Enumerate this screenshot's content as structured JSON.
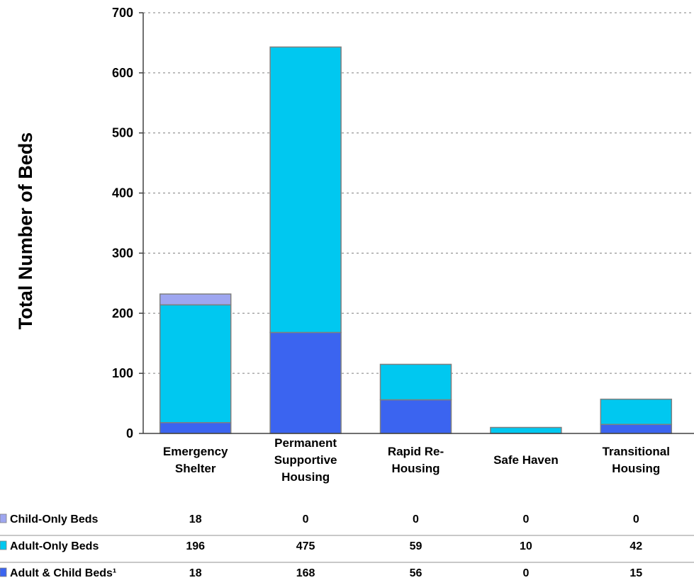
{
  "chart_data": {
    "type": "bar",
    "stacked": true,
    "title": "",
    "xlabel": "",
    "ylabel": "Total Number of Beds",
    "ylim": [
      0,
      700
    ],
    "yticks": [
      0,
      100,
      200,
      300,
      400,
      500,
      600,
      700
    ],
    "grid": true,
    "categories": [
      [
        "Emergency",
        "Shelter"
      ],
      [
        "Permanent",
        "Supportive",
        "Housing"
      ],
      [
        "Rapid Re-",
        "Housing"
      ],
      [
        "Safe Haven"
      ],
      [
        "Transitional",
        "Housing"
      ]
    ],
    "series": [
      {
        "name": "Adult & Child Beds¹",
        "color": "#3b64f0",
        "values": [
          18,
          168,
          56,
          0,
          15
        ]
      },
      {
        "name": "Adult-Only Beds",
        "color": "#00c8f0",
        "values": [
          196,
          475,
          59,
          10,
          42
        ]
      },
      {
        "name": "Child-Only Beds",
        "color": "#9ea6f0",
        "values": [
          18,
          0,
          0,
          0,
          0
        ]
      }
    ],
    "table_rows": [
      {
        "label": "Child-Only Beds",
        "color": "#9ea6f0",
        "values": [
          "18",
          "0",
          "0",
          "0",
          "0"
        ]
      },
      {
        "label": "Adult-Only Beds",
        "color": "#00c8f0",
        "values": [
          "196",
          "475",
          "59",
          "10",
          "42"
        ]
      },
      {
        "label": "Adult & Child Beds¹",
        "color": "#3b64f0",
        "values": [
          "18",
          "168",
          "56",
          "0",
          "15"
        ]
      }
    ]
  }
}
